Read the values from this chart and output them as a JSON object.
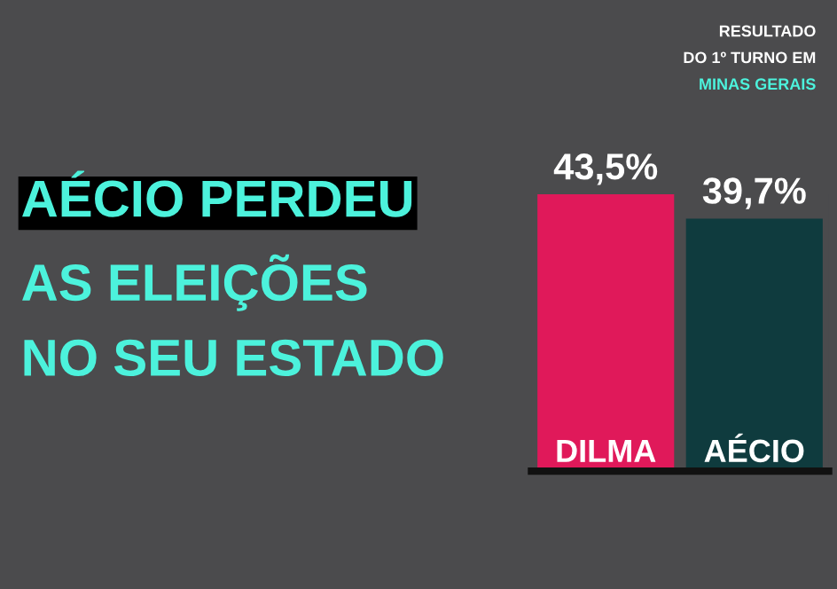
{
  "chart_data": {
    "type": "bar",
    "title": "AÉCIO PERDEU\nAS ELEIÇÕES\nNO SEU ESTADO",
    "subtitle": "RESULTADO\nDO 1º TURNO EM\nMINAS GERAIS",
    "categories": [
      "DILMA",
      "AÉCIO"
    ],
    "values": [
      43.5,
      39.7
    ],
    "colors": [
      "#e0195a",
      "#0f3b3e"
    ],
    "value_labels": [
      "43,5%",
      "39,7%"
    ],
    "legend": false
  }
}
